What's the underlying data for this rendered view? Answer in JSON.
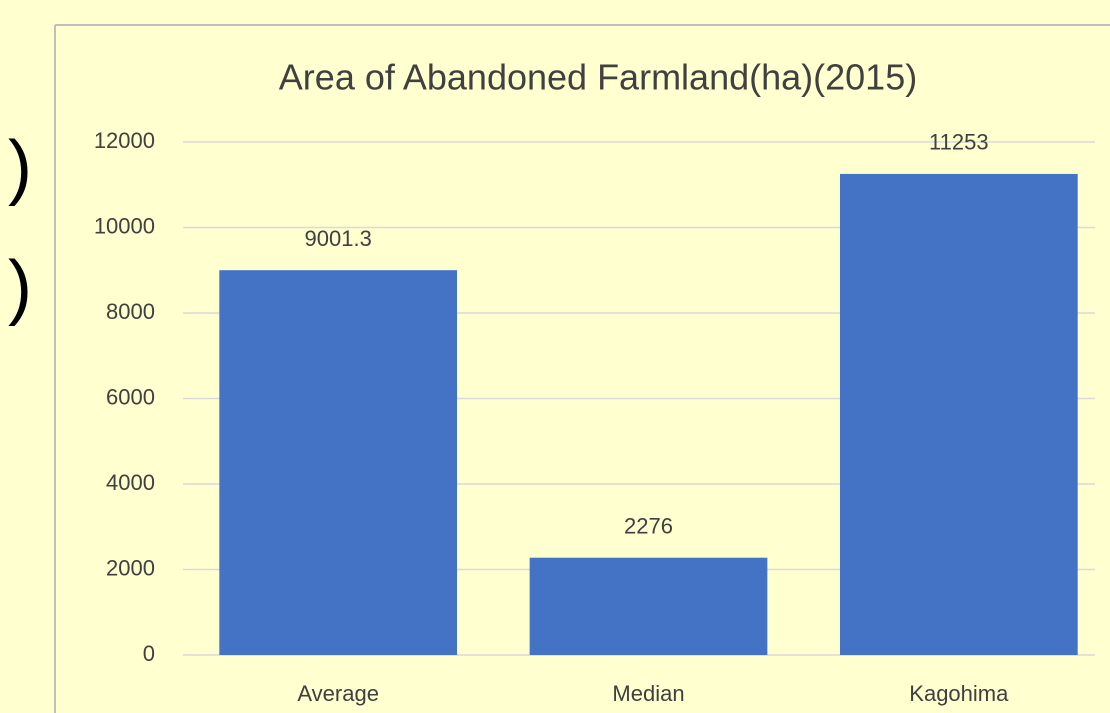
{
  "slide_text": [
    ")",
    ")"
  ],
  "chart_data": {
    "type": "bar",
    "title": "Area of Abandoned Farmland(ha)(2015)",
    "categories": [
      "Average",
      "Median",
      "Kagohima"
    ],
    "values": [
      9001.3,
      2276,
      11253
    ],
    "color": "#4472c4",
    "ylim": [
      0,
      12000
    ],
    "yticks": [
      0,
      2000,
      4000,
      6000,
      8000,
      10000,
      12000
    ],
    "grid": true
  }
}
